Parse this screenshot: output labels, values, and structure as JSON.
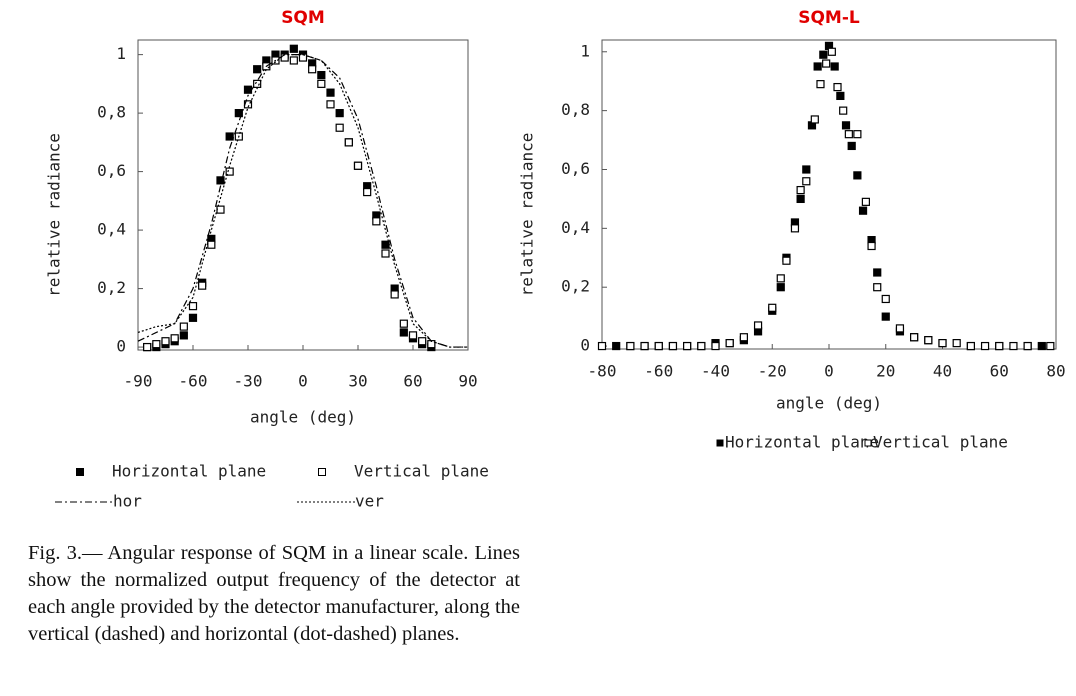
{
  "chart_data": [
    {
      "type": "scatter",
      "title": "SQM",
      "x_label": "angle (deg)",
      "y_label": "relative radiance",
      "xlim": [
        -90,
        90
      ],
      "xticks": [
        -90,
        -60,
        -30,
        0,
        30,
        60,
        90
      ],
      "ylim": [
        -0.01,
        1.05
      ],
      "yticks": [
        0,
        {
          "value": 0.2,
          "label": "0,2"
        },
        {
          "value": 0.4,
          "label": "0,4"
        },
        {
          "value": 0.6,
          "label": "0,6"
        },
        {
          "value": 0.8,
          "label": "0,8"
        },
        1
      ],
      "series": [
        {
          "name": "Horizontal plane",
          "color": "#000000",
          "marker": "filled-square",
          "x": [
            -85,
            -80,
            -75,
            -70,
            -65,
            -60,
            -55,
            -50,
            -45,
            -40,
            -35,
            -30,
            -25,
            -20,
            -15,
            -10,
            -5,
            0,
            5,
            10,
            15,
            20,
            25,
            30,
            35,
            40,
            45,
            50,
            55,
            60,
            65,
            70
          ],
          "values": [
            0.0,
            0.0,
            0.01,
            0.02,
            0.04,
            0.1,
            0.22,
            0.37,
            0.57,
            0.72,
            0.8,
            0.88,
            0.95,
            0.98,
            1.0,
            1.0,
            1.02,
            1.0,
            0.97,
            0.93,
            0.87,
            0.8,
            0.7,
            0.62,
            0.55,
            0.45,
            0.35,
            0.2,
            0.05,
            0.03,
            0.01,
            0.0
          ]
        },
        {
          "name": "Vertical plane",
          "color": "#000000",
          "marker": "open-square",
          "x": [
            -85,
            -80,
            -75,
            -70,
            -65,
            -60,
            -55,
            -50,
            -45,
            -40,
            -35,
            -30,
            -25,
            -20,
            -15,
            -10,
            -5,
            0,
            5,
            10,
            15,
            20,
            25,
            30,
            35,
            40,
            45,
            50,
            55,
            60,
            65,
            70
          ],
          "values": [
            0.0,
            0.01,
            0.02,
            0.03,
            0.07,
            0.14,
            0.21,
            0.35,
            0.47,
            0.6,
            0.72,
            0.83,
            0.9,
            0.96,
            0.98,
            0.99,
            0.98,
            0.99,
            0.95,
            0.9,
            0.83,
            0.75,
            0.7,
            0.62,
            0.53,
            0.43,
            0.32,
            0.18,
            0.08,
            0.04,
            0.02,
            0.01
          ]
        },
        {
          "name": "hor",
          "color": "#000000",
          "line": "dash-dot",
          "x": [
            -90,
            -80,
            -70,
            -60,
            -50,
            -40,
            -30,
            -20,
            -10,
            0,
            10,
            20,
            30,
            40,
            50,
            60,
            70,
            80,
            90
          ],
          "values": [
            0.02,
            0.05,
            0.08,
            0.2,
            0.42,
            0.68,
            0.86,
            0.96,
            1.0,
            1.0,
            0.98,
            0.92,
            0.78,
            0.55,
            0.3,
            0.1,
            0.02,
            0,
            0
          ]
        },
        {
          "name": "ver",
          "color": "#000000",
          "line": "dotted",
          "x": [
            -90,
            -80,
            -70,
            -60,
            -50,
            -40,
            -30,
            -20,
            -10,
            0,
            10,
            20,
            30,
            40,
            50,
            60,
            70,
            80,
            90
          ],
          "values": [
            0.05,
            0.07,
            0.08,
            0.17,
            0.4,
            0.62,
            0.82,
            0.95,
            1.0,
            1.0,
            0.98,
            0.9,
            0.75,
            0.52,
            0.28,
            0.08,
            0.02,
            0,
            0
          ]
        }
      ]
    },
    {
      "type": "scatter",
      "title": "SQM-L",
      "x_label": "angle (deg)",
      "y_label": "relative radiance",
      "xlim": [
        -80,
        80
      ],
      "xticks": [
        -80,
        -60,
        -40,
        -20,
        0,
        20,
        40,
        60,
        80
      ],
      "ylim": [
        -0.01,
        1.04
      ],
      "yticks": [
        0,
        {
          "value": 0.2,
          "label": "0,2"
        },
        {
          "value": 0.4,
          "label": "0,4"
        },
        {
          "value": 0.6,
          "label": "0,6"
        },
        {
          "value": 0.8,
          "label": "0,8"
        },
        1
      ],
      "series": [
        {
          "name": "Horizontal plane",
          "color": "#000000",
          "marker": "filled-square",
          "x": [
            -75,
            -70,
            -65,
            -60,
            -55,
            -50,
            -45,
            -40,
            -35,
            -30,
            -25,
            -20,
            -17,
            -15,
            -12,
            -10,
            -8,
            -6,
            -4,
            -2,
            0,
            2,
            4,
            6,
            8,
            10,
            12,
            15,
            17,
            20,
            25,
            30,
            35,
            40,
            50,
            60,
            70,
            75
          ],
          "values": [
            0,
            0,
            0,
            0,
            0,
            0,
            0,
            0.01,
            0.01,
            0.02,
            0.05,
            0.12,
            0.2,
            0.3,
            0.42,
            0.5,
            0.6,
            0.75,
            0.95,
            0.99,
            1.02,
            0.95,
            0.85,
            0.75,
            0.68,
            0.58,
            0.46,
            0.36,
            0.25,
            0.1,
            0.05,
            0.03,
            0.02,
            0.01,
            0,
            0,
            0,
            0
          ]
        },
        {
          "name": "Vertical plane",
          "color": "#000000",
          "marker": "open-square",
          "x": [
            -80,
            -70,
            -65,
            -60,
            -55,
            -50,
            -45,
            -40,
            -35,
            -30,
            -25,
            -20,
            -17,
            -15,
            -12,
            -10,
            -8,
            -5,
            -3,
            -1,
            1,
            3,
            5,
            7,
            10,
            13,
            15,
            17,
            20,
            25,
            30,
            35,
            40,
            45,
            50,
            55,
            60,
            65,
            70,
            78
          ],
          "values": [
            0,
            0,
            0,
            0,
            0,
            0,
            0,
            0,
            0.01,
            0.03,
            0.07,
            0.13,
            0.23,
            0.29,
            0.4,
            0.53,
            0.56,
            0.77,
            0.89,
            0.96,
            1.0,
            0.88,
            0.8,
            0.72,
            0.72,
            0.49,
            0.34,
            0.2,
            0.16,
            0.06,
            0.03,
            0.02,
            0.01,
            0.01,
            0,
            0,
            0,
            0,
            0,
            0
          ]
        }
      ]
    }
  ],
  "caption": "Fig. 3.— Angular response of SQM in a linear scale. Lines show the normalized output frequency of the detector at each angle provided by the detector manufacturer, along the vertical (dashed) and horizontal (dot-dashed) planes."
}
